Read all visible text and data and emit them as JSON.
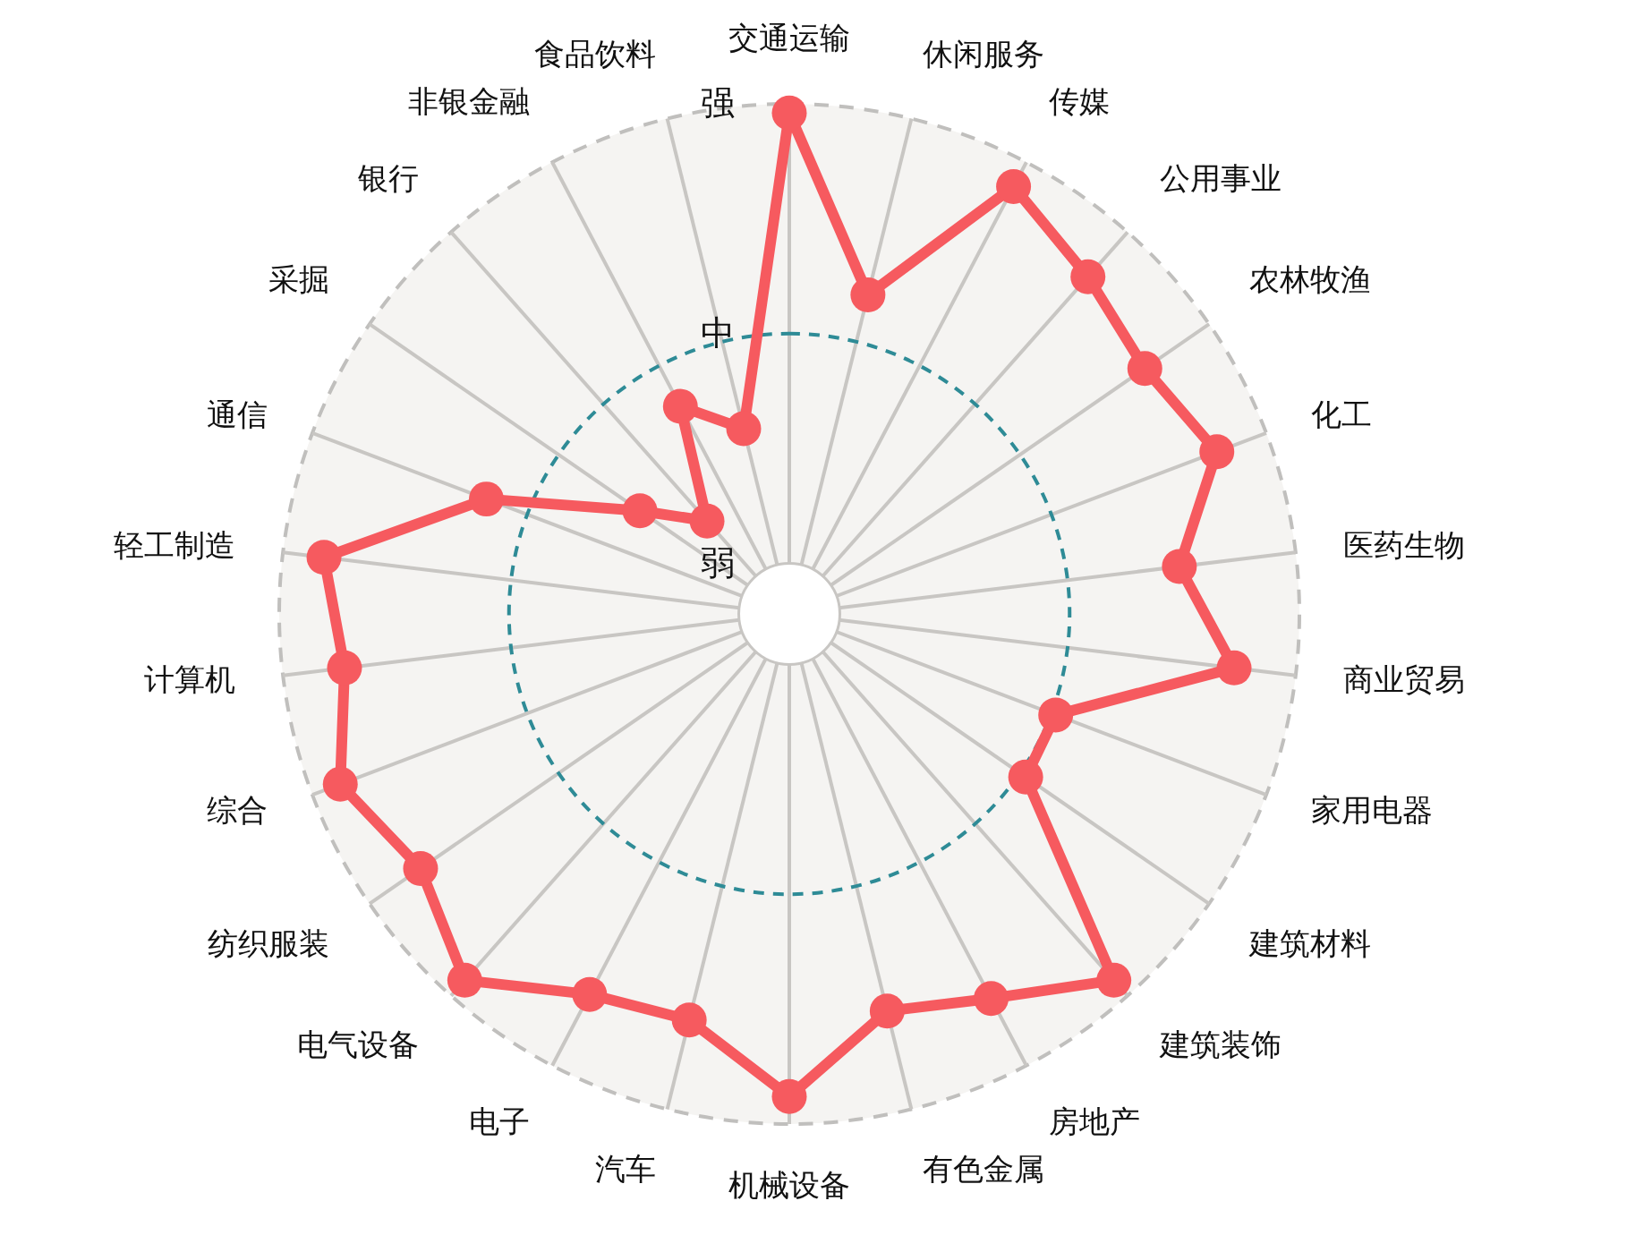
{
  "chart_data": {
    "type": "radar",
    "categories": [
      "交通运输",
      "休闲服务",
      "传媒",
      "公用事业",
      "农林牧渔",
      "化工",
      "医药生物",
      "商业贸易",
      "家用电器",
      "建筑材料",
      "建筑装饰",
      "房地产",
      "有色金属",
      "机械设备",
      "汽车",
      "电子",
      "电气设备",
      "纺织服装",
      "综合",
      "计算机",
      "轻工制造",
      "通信",
      "采掘",
      "银行",
      "非银金融",
      "食品饮料"
    ],
    "series": [
      {
        "color": "#f65a5f",
        "values": [
          1.96,
          1.21,
          1.88,
          1.74,
          1.66,
          1.77,
          1.49,
          1.73,
          1.02,
          1.03,
          1.91,
          1.67,
          1.56,
          1.88,
          1.6,
          1.65,
          1.91,
          1.73,
          1.87,
          1.73,
          1.82,
          1.19,
          0.57,
          0.32,
          0.8,
          0.61
        ]
      }
    ],
    "ylim": [
      -0.22,
      2
    ],
    "yticks": [
      {
        "value": 0,
        "label": "弱"
      },
      {
        "value": 1,
        "label": "中"
      },
      {
        "value": 2,
        "label": "强"
      }
    ],
    "grid": true,
    "marker": "circle",
    "line_style": "solid"
  }
}
